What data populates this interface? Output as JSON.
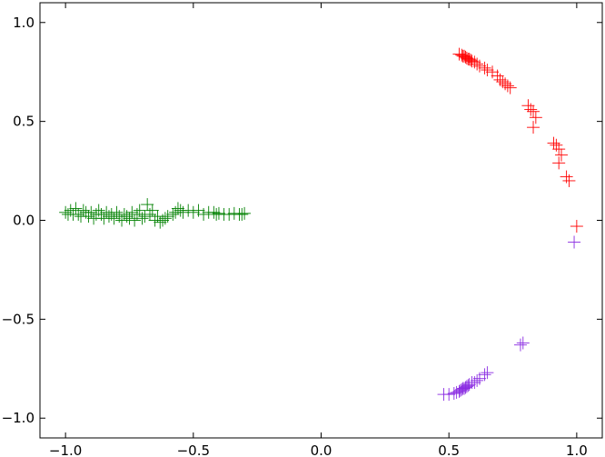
{
  "chart_data": {
    "type": "scatter",
    "title": "",
    "xlabel": "",
    "ylabel": "",
    "xlim": [
      -1.1,
      1.1
    ],
    "ylim": [
      -1.1,
      1.1
    ],
    "x_ticks": [
      -1.0,
      -0.5,
      0.0,
      0.5,
      1.0
    ],
    "x_tick_labels": [
      "−1.0",
      "−0.5",
      "0.0",
      "0.5",
      "1.0"
    ],
    "y_ticks": [
      -1.0,
      -0.5,
      0.0,
      0.5,
      1.0
    ],
    "y_tick_labels": [
      "−1.0",
      "−0.5",
      "0.0",
      "0.5",
      "1.0"
    ],
    "grid": false,
    "legend": false,
    "marker": "plus",
    "series": [
      {
        "color": "#ff0000",
        "points": [
          [
            0.54,
            0.84
          ],
          [
            0.55,
            0.835
          ],
          [
            0.555,
            0.83
          ],
          [
            0.56,
            0.83
          ],
          [
            0.565,
            0.825
          ],
          [
            0.57,
            0.82
          ],
          [
            0.575,
            0.815
          ],
          [
            0.58,
            0.815
          ],
          [
            0.585,
            0.81
          ],
          [
            0.59,
            0.805
          ],
          [
            0.6,
            0.8
          ],
          [
            0.61,
            0.79
          ],
          [
            0.62,
            0.78
          ],
          [
            0.64,
            0.77
          ],
          [
            0.65,
            0.76
          ],
          [
            0.67,
            0.75
          ],
          [
            0.69,
            0.73
          ],
          [
            0.7,
            0.71
          ],
          [
            0.71,
            0.7
          ],
          [
            0.72,
            0.69
          ],
          [
            0.73,
            0.68
          ],
          [
            0.74,
            0.67
          ],
          [
            0.81,
            0.58
          ],
          [
            0.82,
            0.56
          ],
          [
            0.83,
            0.55
          ],
          [
            0.84,
            0.52
          ],
          [
            0.83,
            0.47
          ],
          [
            0.91,
            0.39
          ],
          [
            0.92,
            0.38
          ],
          [
            0.93,
            0.36
          ],
          [
            0.94,
            0.33
          ],
          [
            0.93,
            0.29
          ],
          [
            0.96,
            0.22
          ],
          [
            0.97,
            0.2
          ],
          [
            1.0,
            -0.03
          ]
        ]
      },
      {
        "color": "#008000",
        "points": [
          [
            -1.0,
            0.04
          ],
          [
            -0.99,
            0.03
          ],
          [
            -0.98,
            0.05
          ],
          [
            -0.97,
            0.03
          ],
          [
            -0.96,
            0.06
          ],
          [
            -0.95,
            0.03
          ],
          [
            -0.94,
            0.02
          ],
          [
            -0.93,
            0.05
          ],
          [
            -0.92,
            0.04
          ],
          [
            -0.91,
            0.02
          ],
          [
            -0.9,
            0.04
          ],
          [
            -0.89,
            0.01
          ],
          [
            -0.88,
            0.03
          ],
          [
            -0.87,
            0.05
          ],
          [
            -0.86,
            0.03
          ],
          [
            -0.85,
            0.01
          ],
          [
            -0.84,
            0.04
          ],
          [
            -0.83,
            0.02
          ],
          [
            -0.82,
            0.03
          ],
          [
            -0.81,
            0.01
          ],
          [
            -0.8,
            0.04
          ],
          [
            -0.79,
            0.02
          ],
          [
            -0.78,
            0.0
          ],
          [
            -0.77,
            0.03
          ],
          [
            -0.76,
            0.02
          ],
          [
            -0.75,
            0.01
          ],
          [
            -0.74,
            0.04
          ],
          [
            -0.73,
            0.0
          ],
          [
            -0.72,
            0.03
          ],
          [
            -0.71,
            0.05
          ],
          [
            -0.7,
            0.01
          ],
          [
            -0.69,
            0.02
          ],
          [
            -0.68,
            0.08
          ],
          [
            -0.67,
            0.03
          ],
          [
            -0.66,
            0.05
          ],
          [
            -0.65,
            0.0
          ],
          [
            -0.64,
            0.02
          ],
          [
            -0.63,
            -0.01
          ],
          [
            -0.62,
            0.0
          ],
          [
            -0.61,
            0.01
          ],
          [
            -0.6,
            0.02
          ],
          [
            -0.58,
            0.03
          ],
          [
            -0.57,
            0.04
          ],
          [
            -0.56,
            0.06
          ],
          [
            -0.55,
            0.05
          ],
          [
            -0.54,
            0.04
          ],
          [
            -0.52,
            0.05
          ],
          [
            -0.5,
            0.04
          ],
          [
            -0.48,
            0.05
          ],
          [
            -0.46,
            0.03
          ],
          [
            -0.44,
            0.04
          ],
          [
            -0.42,
            0.04
          ],
          [
            -0.41,
            0.03
          ],
          [
            -0.4,
            0.035
          ],
          [
            -0.38,
            0.03
          ],
          [
            -0.36,
            0.03
          ],
          [
            -0.34,
            0.035
          ],
          [
            -0.32,
            0.03
          ],
          [
            -0.31,
            0.03
          ],
          [
            -0.3,
            0.035
          ]
        ]
      },
      {
        "color": "#8a2be2",
        "points": [
          [
            0.99,
            -0.11
          ],
          [
            0.78,
            -0.63
          ],
          [
            0.79,
            -0.62
          ],
          [
            0.65,
            -0.77
          ],
          [
            0.64,
            -0.78
          ],
          [
            0.62,
            -0.8
          ],
          [
            0.61,
            -0.81
          ],
          [
            0.6,
            -0.82
          ],
          [
            0.59,
            -0.82
          ],
          [
            0.58,
            -0.83
          ],
          [
            0.575,
            -0.835
          ],
          [
            0.57,
            -0.84
          ],
          [
            0.565,
            -0.845
          ],
          [
            0.56,
            -0.85
          ],
          [
            0.555,
            -0.85
          ],
          [
            0.55,
            -0.855
          ],
          [
            0.545,
            -0.86
          ],
          [
            0.54,
            -0.865
          ],
          [
            0.53,
            -0.87
          ],
          [
            0.52,
            -0.875
          ],
          [
            0.5,
            -0.88
          ],
          [
            0.48,
            -0.88
          ]
        ]
      }
    ]
  }
}
